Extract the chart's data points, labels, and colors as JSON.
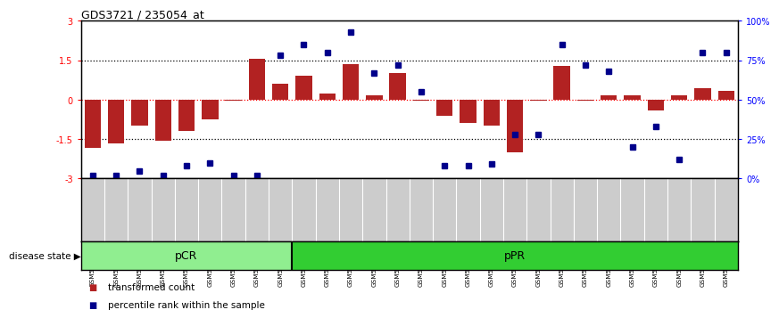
{
  "title": "GDS3721 / 235054_at",
  "samples": [
    "GSM559062",
    "GSM559063",
    "GSM559064",
    "GSM559065",
    "GSM559066",
    "GSM559067",
    "GSM559068",
    "GSM559069",
    "GSM559042",
    "GSM559043",
    "GSM559044",
    "GSM559045",
    "GSM559046",
    "GSM559047",
    "GSM559048",
    "GSM559049",
    "GSM559050",
    "GSM559051",
    "GSM559052",
    "GSM559053",
    "GSM559054",
    "GSM559055",
    "GSM559056",
    "GSM559057",
    "GSM559058",
    "GSM559059",
    "GSM559060",
    "GSM559061"
  ],
  "transformed_count": [
    -1.85,
    -1.65,
    -1.0,
    -1.55,
    -1.2,
    -0.75,
    -0.05,
    1.55,
    0.6,
    0.9,
    0.25,
    1.35,
    0.15,
    1.0,
    -0.05,
    -0.6,
    -0.9,
    -1.0,
    -2.0,
    -0.05,
    1.3,
    -0.05,
    0.15,
    0.15,
    -0.4,
    0.15,
    0.45,
    0.35
  ],
  "percentile_rank": [
    2,
    2,
    5,
    2,
    8,
    10,
    2,
    2,
    78,
    85,
    80,
    93,
    67,
    72,
    55,
    8,
    8,
    9,
    28,
    28,
    85,
    72,
    68,
    20,
    33,
    12,
    80,
    80
  ],
  "pCR_count": 9,
  "pPR_count": 19,
  "ylim": [
    -3,
    3
  ],
  "bar_color": "#B22222",
  "dot_color": "#00008B",
  "pCR_color": "#90EE90",
  "pPR_color": "#32CD32",
  "pcr_label": "pCR",
  "ppr_label": "pPR",
  "disease_state_label": "disease state",
  "legend_bar": "transformed count",
  "legend_dot": "percentile rank within the sample",
  "left_yticks": [
    -3,
    -1.5,
    0,
    1.5,
    3
  ],
  "left_yticklabels": [
    "-3",
    "-1.5",
    "0",
    "1.5",
    "3"
  ],
  "right_yticks": [
    0,
    25,
    50,
    75,
    100
  ],
  "right_yticklabels": [
    "0%",
    "25%",
    "50%",
    "75%",
    "100%"
  ],
  "dotted_lines": [
    1.5,
    -1.5
  ],
  "zero_line_color": "red",
  "dotted_line_color": "black"
}
